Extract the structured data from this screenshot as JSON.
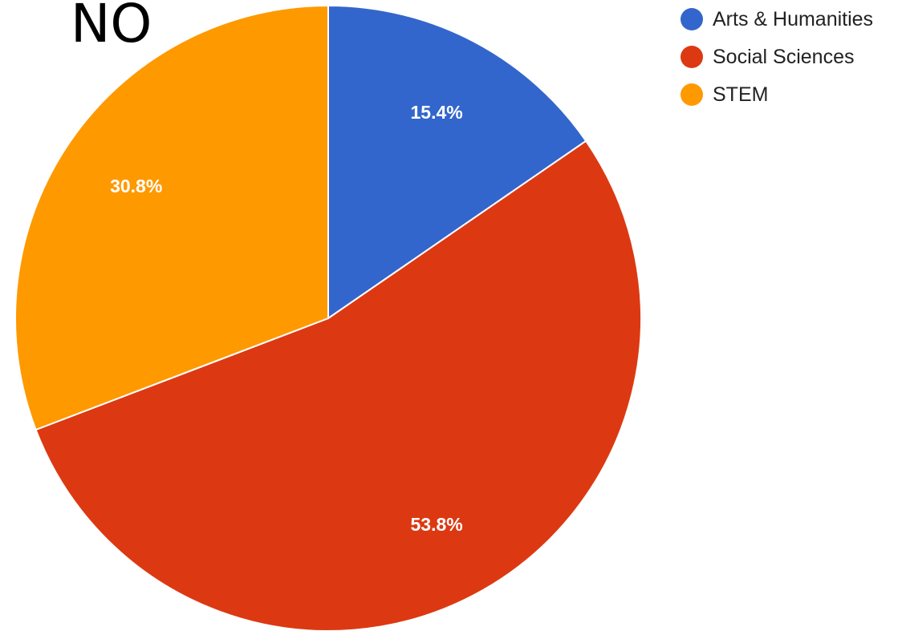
{
  "heading": "NO",
  "chart_data": {
    "type": "pie",
    "title": "",
    "legend_position": "top-right",
    "slices": [
      {
        "label": "Arts & Humanities",
        "value": 15.4,
        "value_label": "15.4%",
        "color": "#3366cc"
      },
      {
        "label": "Social Sciences",
        "value": 53.8,
        "value_label": "53.8%",
        "color": "#dc3912"
      },
      {
        "label": "STEM",
        "value": 30.8,
        "value_label": "30.8%",
        "color": "#ff9900"
      }
    ]
  }
}
